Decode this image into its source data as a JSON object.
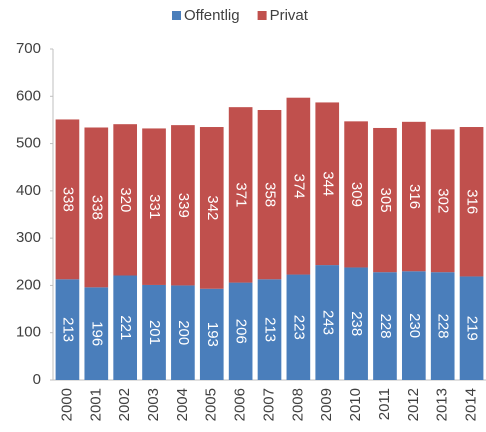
{
  "chart_data": {
    "type": "stacked_bar",
    "categories": [
      "2000",
      "2001",
      "2002",
      "2003",
      "2004",
      "2005",
      "2006",
      "2007",
      "2008",
      "2009",
      "2010",
      "2011",
      "2012",
      "2013",
      "2014"
    ],
    "series": [
      {
        "name": "Offentlig",
        "color": "#4a7ebb",
        "values": [
          213,
          196,
          221,
          201,
          200,
          193,
          206,
          213,
          223,
          243,
          238,
          228,
          230,
          228,
          219
        ]
      },
      {
        "name": "Privat",
        "color": "#c0504d",
        "values": [
          338,
          338,
          320,
          331,
          339,
          342,
          371,
          358,
          374,
          344,
          309,
          305,
          316,
          302,
          316
        ]
      }
    ],
    "ylim": [
      0,
      700
    ],
    "yticks": [
      0,
      100,
      200,
      300,
      400,
      500,
      600,
      700
    ],
    "grid": false,
    "legend": "top"
  }
}
